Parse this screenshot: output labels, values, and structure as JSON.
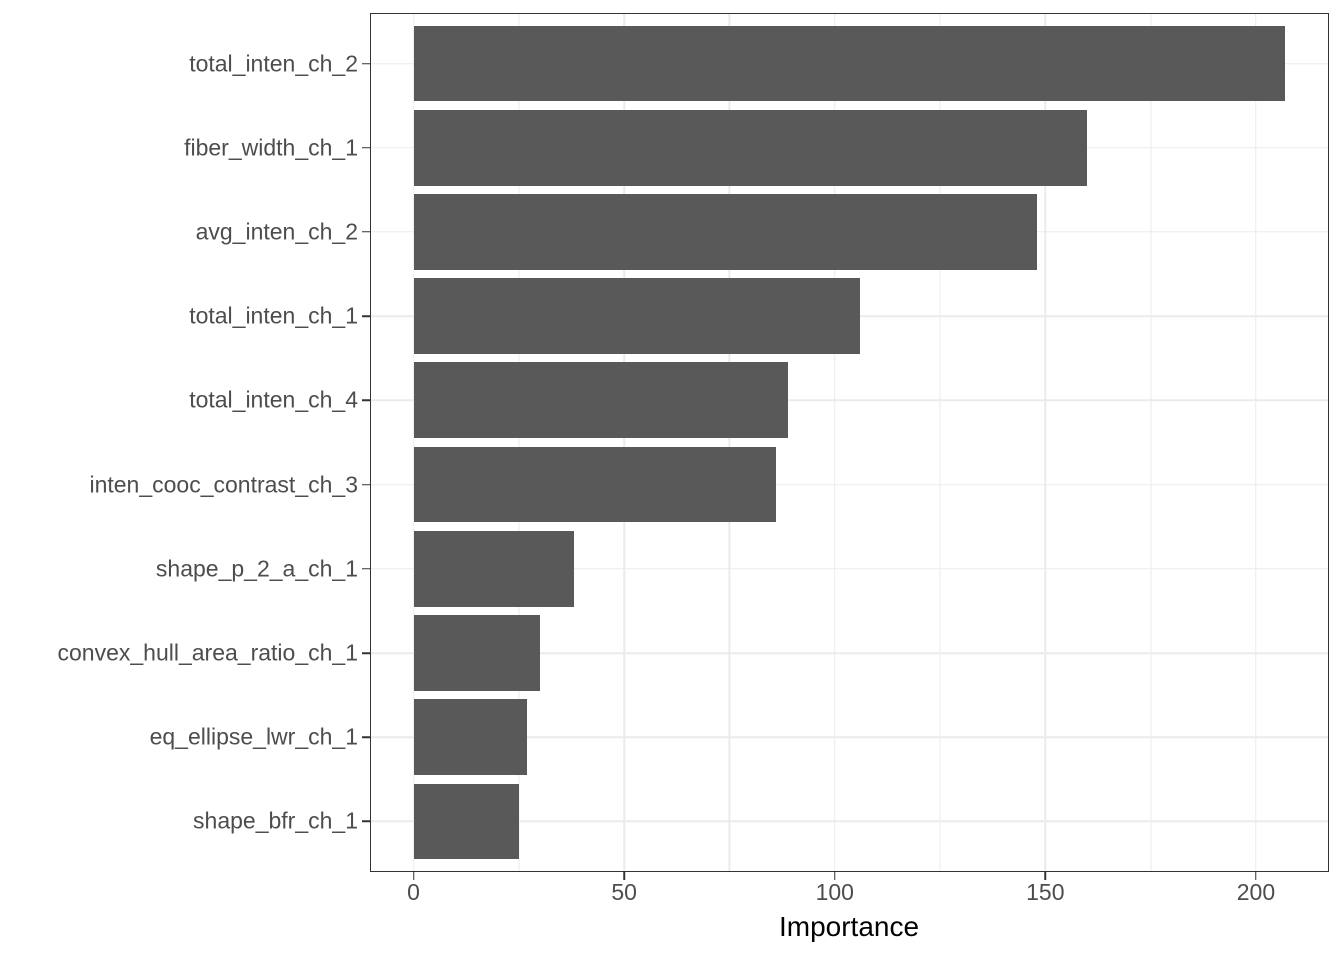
{
  "figure": {
    "background": "#FFFFFF"
  },
  "chart_data": {
    "type": "bar",
    "orientation": "horizontal",
    "title": "",
    "xlabel": "Importance",
    "ylabel": "",
    "categories": [
      "total_inten_ch_2",
      "fiber_width_ch_1",
      "avg_inten_ch_2",
      "total_inten_ch_1",
      "total_inten_ch_4",
      "inten_cooc_contrast_ch_3",
      "shape_p_2_a_ch_1",
      "convex_hull_area_ratio_ch_1",
      "eq_ellipse_lwr_ch_1",
      "shape_bfr_ch_1"
    ],
    "values": [
      207,
      160,
      148,
      106,
      89,
      86,
      38,
      30,
      27,
      25
    ],
    "xlim": [
      -10.35,
      217.35
    ],
    "x_ticks": [
      0,
      50,
      100,
      150,
      200
    ],
    "x_minor_gridlines": [
      25,
      75,
      125,
      175
    ],
    "grid": true,
    "legend": false,
    "bar_fill": "#595959",
    "grid_color": "#EBEBEB",
    "panel_border_color": "#333333",
    "tick_color": "#333333",
    "axis_text_color": "#4D4D4D",
    "axis_title_color": "#000000"
  }
}
